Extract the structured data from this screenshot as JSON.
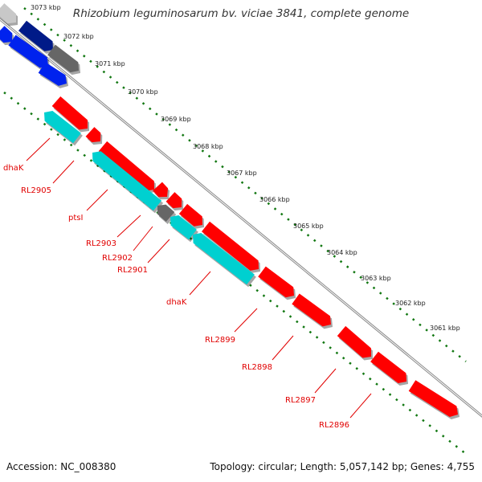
{
  "title": "Rhizobium leguminosarum bv. viciae 3841, complete genome",
  "footer": {
    "accession": "Accession: NC_008380",
    "summary": "Topology: circular; Length: 5,057,142 bp; Genes: 4,755"
  },
  "colors": {
    "forward_gene": "#ff0000",
    "reverse_gene": "#00d0d0",
    "other_gene": "#666666",
    "top_blue": "#0022ee",
    "top_navy": "#001a88",
    "backbone": "#8a8a8a",
    "dotted_track": "#117711",
    "label": "#e10000"
  },
  "scale_ticks": [
    {
      "label": "3073 kbp"
    },
    {
      "label": "3072 kbp"
    },
    {
      "label": "3071 kbp"
    },
    {
      "label": "3070 kbp"
    },
    {
      "label": "3069 kbp"
    },
    {
      "label": "3068 kbp"
    },
    {
      "label": "3067 kbp"
    },
    {
      "label": "3066 kbp"
    },
    {
      "label": "3065 kbp"
    },
    {
      "label": "3064 kbp"
    },
    {
      "label": "3063 kbp"
    },
    {
      "label": "3062 kbp"
    },
    {
      "label": "3061 kbp"
    }
  ],
  "gene_labels": [
    {
      "name": "dhaK"
    },
    {
      "name": "RL2905"
    },
    {
      "name": "ptsI"
    },
    {
      "name": "RL2903"
    },
    {
      "name": "RL2902"
    },
    {
      "name": "RL2901"
    },
    {
      "name": "dhaK"
    },
    {
      "name": "RL2899"
    },
    {
      "name": "RL2898"
    },
    {
      "name": "RL2897"
    },
    {
      "name": "RL2896"
    }
  ]
}
